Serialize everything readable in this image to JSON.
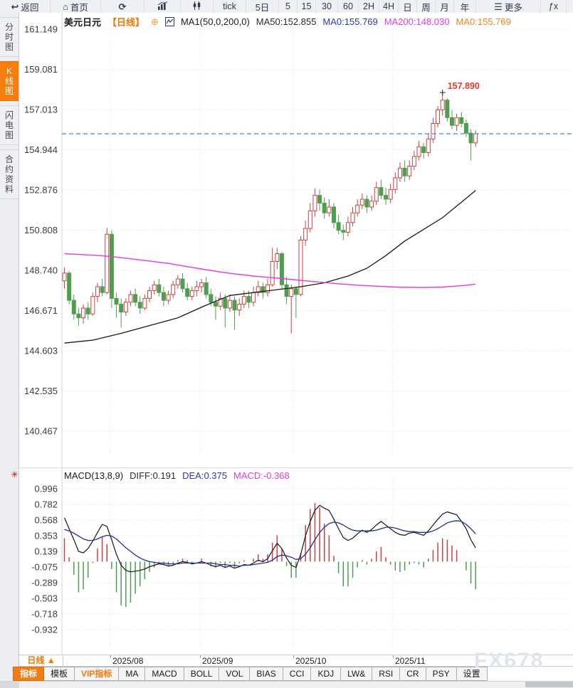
{
  "toolbar": {
    "items": [
      {
        "id": "back",
        "icon": "back-arrow-icon",
        "glyph": "↩",
        "label": "返回"
      },
      {
        "id": "home",
        "icon": "home-icon",
        "glyph": "⌂",
        "label": "首页"
      },
      {
        "id": "refresh",
        "icon": "refresh-icon",
        "glyph": "⟳",
        "label": ""
      },
      {
        "id": "bar-chart",
        "icon": "bar-chart-icon",
        "glyph": "",
        "label": ""
      },
      {
        "id": "candle-chart",
        "icon": "candlestick-icon",
        "glyph": "",
        "label": ""
      },
      {
        "id": "tick",
        "label": "tick"
      },
      {
        "id": "5d",
        "label": "5日"
      },
      {
        "id": "5",
        "label": "5"
      },
      {
        "id": "15",
        "label": "15"
      },
      {
        "id": "30",
        "label": "30"
      },
      {
        "id": "60",
        "label": "60"
      },
      {
        "id": "2h",
        "label": "2H"
      },
      {
        "id": "4h",
        "label": "4H"
      },
      {
        "id": "day",
        "label": "日"
      },
      {
        "id": "week",
        "label": "周"
      },
      {
        "id": "month",
        "label": "月"
      },
      {
        "id": "year",
        "label": "年"
      },
      {
        "id": "more",
        "icon": "menu-icon",
        "glyph": "☰",
        "label": "更多"
      },
      {
        "id": "fx",
        "label": "ƒx"
      },
      {
        "id": "zoom-out",
        "icon": "zoom-out-icon",
        "glyph": "⊖",
        "label": ""
      }
    ]
  },
  "sidebar": {
    "tabs": [
      {
        "id": "time-chart",
        "label": "分时图",
        "active": false
      },
      {
        "id": "kline-chart",
        "label": "K线图",
        "active": true
      },
      {
        "id": "lightning-chart",
        "label": "闪电图",
        "active": false
      },
      {
        "id": "contract-info",
        "label": "合约资料",
        "active": false
      }
    ]
  },
  "main_header": {
    "symbol": "美元日元",
    "period_tag": "【日线】",
    "plus_icon": "⊕",
    "ma_settings": "MA1(50,0,200,0)",
    "values": [
      {
        "text": "MA50:152.855",
        "color": "#2b2b2b"
      },
      {
        "text": "MA0:155.769",
        "color": "#2b35c8"
      },
      {
        "text": "MA200:148.030",
        "color": "#e43be4"
      },
      {
        "text": "MA0:155.769",
        "color": "#f5831f"
      }
    ]
  },
  "macd_header": {
    "params": "MACD(13,8,9)",
    "values": [
      {
        "text": "DIFF:0.191",
        "color": "#2b2b2b"
      },
      {
        "text": "DEA:0.375",
        "color": "#2b35c8"
      },
      {
        "text": "MACD:-0.368",
        "color": "#e43be4"
      }
    ]
  },
  "bottom": {
    "period_button": "日线 ▲",
    "tabs": [
      {
        "label": "指标",
        "state": "active"
      },
      {
        "label": "模板",
        "state": ""
      },
      {
        "label": "VIP指标",
        "state": "vip"
      },
      {
        "label": "MA",
        "state": ""
      },
      {
        "label": "MACD",
        "state": ""
      },
      {
        "label": "BOLL",
        "state": ""
      },
      {
        "label": "VOL",
        "state": ""
      },
      {
        "label": "BIAS",
        "state": ""
      },
      {
        "label": "CCI",
        "state": ""
      },
      {
        "label": "KDJ",
        "state": ""
      },
      {
        "label": "LW&",
        "state": ""
      },
      {
        "label": "RSI",
        "state": ""
      },
      {
        "label": "CR",
        "state": ""
      },
      {
        "label": "PSY",
        "state": ""
      },
      {
        "label": "设置",
        "state": ""
      }
    ]
  },
  "watermark": "FX678",
  "colors": {
    "accent_orange": "#f07800",
    "up": "#c94341",
    "down": "#4f9e50",
    "ma50": "#1a1a1a",
    "ma200": "#e23ae2",
    "diff": "#161616",
    "dea": "#232f9b",
    "price_line": "#2a8df2",
    "annotation": "#e23b2e",
    "grid": "#e0e0e0",
    "axis_text": "#3d3d3d"
  },
  "chart_data": [
    {
      "type": "candlestick",
      "title": "美元日元 日线",
      "y_ticks": [
        161.149,
        159.081,
        157.013,
        154.944,
        152.876,
        150.808,
        148.74,
        146.671,
        144.603,
        142.535,
        140.467
      ],
      "x_labels": [
        "2025/08",
        "2025/09",
        "2025/10",
        "2025/11"
      ],
      "x_label_indices": [
        9.7,
        28.7,
        48.4,
        69.5
      ],
      "price_line": 155.769,
      "annotation": {
        "text": "157.890",
        "at_index": 80,
        "price": 157.89
      },
      "candles": [
        [
          148.2,
          148.9,
          147.8,
          148.6
        ],
        [
          148.6,
          148.7,
          147.0,
          147.2
        ],
        [
          147.2,
          147.5,
          146.2,
          146.5
        ],
        [
          146.5,
          146.8,
          145.9,
          146.3
        ],
        [
          146.3,
          147.0,
          146.0,
          146.8
        ],
        [
          146.8,
          147.1,
          146.2,
          146.5
        ],
        [
          146.5,
          147.6,
          146.4,
          147.4
        ],
        [
          147.4,
          148.1,
          147.1,
          147.9
        ],
        [
          147.9,
          148.3,
          147.4,
          147.6
        ],
        [
          147.6,
          150.92,
          147.5,
          150.6
        ],
        [
          150.6,
          150.8,
          146.8,
          147.3
        ],
        [
          147.3,
          147.6,
          146.3,
          147.0
        ],
        [
          147.0,
          147.3,
          145.8,
          146.6
        ],
        [
          146.6,
          147.3,
          146.4,
          147.1
        ],
        [
          147.1,
          147.7,
          146.9,
          147.5
        ],
        [
          147.5,
          147.8,
          146.9,
          147.1
        ],
        [
          147.1,
          147.4,
          146.5,
          146.8
        ],
        [
          146.8,
          147.5,
          146.7,
          147.3
        ],
        [
          147.3,
          147.9,
          147.1,
          147.7
        ],
        [
          147.7,
          148.2,
          147.5,
          148.0
        ],
        [
          148.0,
          148.3,
          147.4,
          147.6
        ],
        [
          147.6,
          147.9,
          146.9,
          147.2
        ],
        [
          147.2,
          147.7,
          147.0,
          147.5
        ],
        [
          147.5,
          148.2,
          147.3,
          148.0
        ],
        [
          148.0,
          148.5,
          147.8,
          148.3
        ],
        [
          148.3,
          148.6,
          147.6,
          147.8
        ],
        [
          147.8,
          148.1,
          147.2,
          147.4
        ],
        [
          147.4,
          147.9,
          147.2,
          147.7
        ],
        [
          147.7,
          148.2,
          147.4,
          147.9
        ],
        [
          147.9,
          148.3,
          147.6,
          148.1
        ],
        [
          148.1,
          148.4,
          147.3,
          147.5
        ],
        [
          147.5,
          147.8,
          146.9,
          147.1
        ],
        [
          147.1,
          147.4,
          146.2,
          146.9
        ],
        [
          146.9,
          147.6,
          146.7,
          147.3
        ],
        [
          147.3,
          147.5,
          145.8,
          146.8
        ],
        [
          146.8,
          147.5,
          146.6,
          147.2
        ],
        [
          147.2,
          147.4,
          145.7,
          146.7
        ],
        [
          146.7,
          147.3,
          146.4,
          147.0
        ],
        [
          147.0,
          147.7,
          146.8,
          147.4
        ],
        [
          147.4,
          147.7,
          146.8,
          147.1
        ],
        [
          147.1,
          147.9,
          146.9,
          147.6
        ],
        [
          147.6,
          148.2,
          147.4,
          147.9
        ],
        [
          147.9,
          148.1,
          147.3,
          147.6
        ],
        [
          147.6,
          148.3,
          147.4,
          148.0
        ],
        [
          148.0,
          149.9,
          147.9,
          149.2
        ],
        [
          149.2,
          149.9,
          148.8,
          149.6
        ],
        [
          149.6,
          149.7,
          147.8,
          148.0
        ],
        [
          148.0,
          148.4,
          147.0,
          147.4
        ],
        [
          147.4,
          148.0,
          145.5,
          147.8
        ],
        [
          147.8,
          147.9,
          146.3,
          147.5
        ],
        [
          147.5,
          150.5,
          147.4,
          150.3
        ],
        [
          150.3,
          151.3,
          150.0,
          150.9
        ],
        [
          150.9,
          152.2,
          150.7,
          151.8
        ],
        [
          151.8,
          152.95,
          151.5,
          152.6
        ],
        [
          152.6,
          152.9,
          151.8,
          152.2
        ],
        [
          152.2,
          152.5,
          151.4,
          151.7
        ],
        [
          151.7,
          152.4,
          151.5,
          152.0
        ],
        [
          152.0,
          152.2,
          150.9,
          151.2
        ],
        [
          151.2,
          151.6,
          150.6,
          150.8
        ],
        [
          150.8,
          151.1,
          150.3,
          150.7
        ],
        [
          150.7,
          151.5,
          150.5,
          151.2
        ],
        [
          151.2,
          152.0,
          151.0,
          151.7
        ],
        [
          151.7,
          152.4,
          151.5,
          152.1
        ],
        [
          152.1,
          152.7,
          151.9,
          152.4
        ],
        [
          152.4,
          152.6,
          151.7,
          152.0
        ],
        [
          152.0,
          152.6,
          151.8,
          152.3
        ],
        [
          152.3,
          153.3,
          152.1,
          153.0
        ],
        [
          153.0,
          153.4,
          152.4,
          152.6
        ],
        [
          152.6,
          153.0,
          152.1,
          152.4
        ],
        [
          152.4,
          153.2,
          152.2,
          152.9
        ],
        [
          152.9,
          153.8,
          152.7,
          153.5
        ],
        [
          153.5,
          154.3,
          153.3,
          154.0
        ],
        [
          154.0,
          154.4,
          153.3,
          153.6
        ],
        [
          153.6,
          154.4,
          153.4,
          154.1
        ],
        [
          154.1,
          154.9,
          153.9,
          154.6
        ],
        [
          154.6,
          155.4,
          154.4,
          155.1
        ],
        [
          155.1,
          155.3,
          154.5,
          154.8
        ],
        [
          154.8,
          155.8,
          154.6,
          155.5
        ],
        [
          155.5,
          156.6,
          155.3,
          156.3
        ],
        [
          156.3,
          157.2,
          156.1,
          157.0
        ],
        [
          157.0,
          157.89,
          156.7,
          157.5
        ],
        [
          157.5,
          157.6,
          156.4,
          156.6
        ],
        [
          156.6,
          157.0,
          156.0,
          156.2
        ],
        [
          156.2,
          156.8,
          155.9,
          156.6
        ],
        [
          156.6,
          156.9,
          156.1,
          156.3
        ],
        [
          156.3,
          156.5,
          155.6,
          155.8
        ],
        [
          155.8,
          156.0,
          154.4,
          155.3
        ],
        [
          155.3,
          155.95,
          155.1,
          155.77
        ]
      ],
      "ma50_points": [
        [
          0,
          145.0
        ],
        [
          6,
          145.15
        ],
        [
          12,
          145.5
        ],
        [
          18,
          145.9
        ],
        [
          24,
          146.3
        ],
        [
          30,
          146.95
        ],
        [
          35,
          147.45
        ],
        [
          40,
          147.6
        ],
        [
          45,
          147.75
        ],
        [
          50,
          147.9
        ],
        [
          55,
          148.1
        ],
        [
          60,
          148.45
        ],
        [
          64,
          148.85
        ],
        [
          68,
          149.5
        ],
        [
          72,
          150.25
        ],
        [
          76,
          150.85
        ],
        [
          80,
          151.45
        ],
        [
          83,
          152.05
        ],
        [
          85,
          152.45
        ],
        [
          87,
          152.855
        ]
      ],
      "ma200_points": [
        [
          0,
          149.6
        ],
        [
          6,
          149.52
        ],
        [
          10,
          149.45
        ],
        [
          16,
          149.28
        ],
        [
          22,
          149.1
        ],
        [
          28,
          148.85
        ],
        [
          34,
          148.62
        ],
        [
          40,
          148.45
        ],
        [
          46,
          148.32
        ],
        [
          52,
          148.18
        ],
        [
          58,
          148.05
        ],
        [
          64,
          147.95
        ],
        [
          70,
          147.88
        ],
        [
          76,
          147.86
        ],
        [
          80,
          147.88
        ],
        [
          84,
          147.95
        ],
        [
          87,
          148.03
        ]
      ]
    },
    {
      "type": "macd",
      "params": [
        13,
        8,
        9
      ],
      "y_ticks": [
        0.996,
        0.782,
        0.568,
        0.353,
        0.139,
        -0.075,
        -0.289,
        -0.503,
        -0.718,
        -0.932
      ],
      "last": {
        "diff": 0.191,
        "dea": 0.375,
        "macd": -0.368
      },
      "histogram_rule": "2*(diff-dea)",
      "diff": [
        0.6,
        0.45,
        0.3,
        0.14,
        0.12,
        0.18,
        0.28,
        0.4,
        0.51,
        0.48,
        0.3,
        0.1,
        -0.05,
        -0.12,
        -0.14,
        -0.13,
        -0.12,
        -0.1,
        -0.07,
        -0.05,
        -0.03,
        -0.04,
        -0.06,
        -0.05,
        -0.02,
        0.0,
        -0.01,
        -0.03,
        -0.02,
        0.0,
        -0.02,
        -0.05,
        -0.07,
        -0.05,
        -0.08,
        -0.06,
        -0.09,
        -0.07,
        -0.04,
        -0.05,
        -0.02,
        0.02,
        0.0,
        0.04,
        0.15,
        0.25,
        0.18,
        0.05,
        -0.05,
        -0.08,
        0.1,
        0.35,
        0.55,
        0.7,
        0.77,
        0.73,
        0.7,
        0.58,
        0.45,
        0.33,
        0.29,
        0.32,
        0.38,
        0.43,
        0.4,
        0.44,
        0.5,
        0.55,
        0.5,
        0.45,
        0.4,
        0.37,
        0.36,
        0.39,
        0.4,
        0.38,
        0.36,
        0.42,
        0.5,
        0.58,
        0.65,
        0.68,
        0.66,
        0.64,
        0.55,
        0.45,
        0.3,
        0.19
      ],
      "dea": [
        0.44,
        0.42,
        0.39,
        0.35,
        0.31,
        0.29,
        0.29,
        0.31,
        0.34,
        0.36,
        0.35,
        0.31,
        0.25,
        0.19,
        0.14,
        0.09,
        0.05,
        0.02,
        0.0,
        -0.01,
        -0.02,
        -0.02,
        -0.03,
        -0.03,
        -0.03,
        -0.02,
        -0.02,
        -0.02,
        -0.02,
        -0.02,
        -0.02,
        -0.02,
        -0.03,
        -0.04,
        -0.04,
        -0.05,
        -0.05,
        -0.06,
        -0.05,
        -0.05,
        -0.04,
        -0.03,
        -0.02,
        -0.01,
        0.02,
        0.07,
        0.09,
        0.08,
        0.06,
        0.03,
        0.04,
        0.1,
        0.19,
        0.3,
        0.4,
        0.47,
        0.52,
        0.54,
        0.53,
        0.5,
        0.46,
        0.43,
        0.42,
        0.42,
        0.42,
        0.42,
        0.43,
        0.45,
        0.47,
        0.47,
        0.46,
        0.44,
        0.42,
        0.41,
        0.41,
        0.4,
        0.4,
        0.4,
        0.42,
        0.45,
        0.49,
        0.53,
        0.55,
        0.56,
        0.55,
        0.51,
        0.45,
        0.38
      ]
    }
  ]
}
